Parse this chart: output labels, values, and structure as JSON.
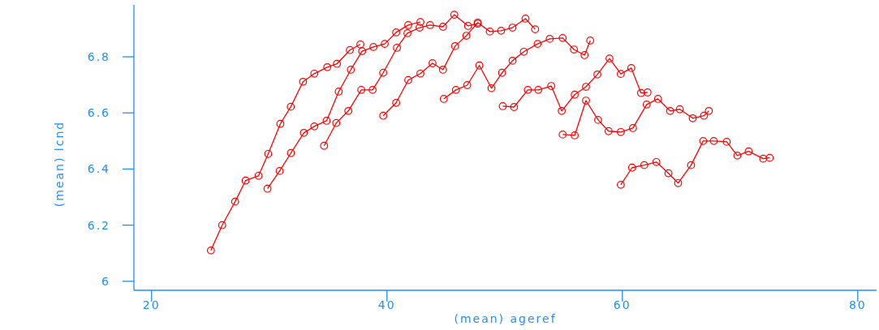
{
  "chart_data": {
    "type": "line",
    "xlabel": "(mean) ageref",
    "ylabel": "(mean) lcnd",
    "xlim": [
      18.5,
      81.6
    ],
    "ylim": [
      5.968,
      6.985
    ],
    "xticks": [
      20,
      40,
      60,
      80
    ],
    "yticks": [
      6,
      {
        "value": 6.2,
        "label": "6.2"
      },
      {
        "value": 6.4,
        "label": "6.4"
      },
      {
        "value": 6.6,
        "label": "6.6"
      },
      {
        "value": 6.8,
        "label": "6.8"
      }
    ],
    "grid": false,
    "marker": "circle",
    "line_style": "solid",
    "series": [
      {
        "color": "#ff0000",
        "x": [
          25.04,
          26.0,
          27.1,
          27.99,
          29.09,
          29.91,
          30.94,
          31.83,
          32.87,
          33.83,
          34.93,
          35.75,
          36.85,
          37.74
        ],
        "values": [
          6.11,
          6.2,
          6.284,
          6.359,
          6.376,
          6.454,
          6.561,
          6.622,
          6.711,
          6.74,
          6.763,
          6.775,
          6.824,
          6.844
        ]
      },
      {
        "color": "#ff0000",
        "x": [
          29.85,
          30.88,
          31.84,
          32.94,
          33.83,
          34.87,
          35.9,
          36.93,
          37.89,
          38.85,
          39.81,
          40.78,
          41.81,
          42.84
        ],
        "values": [
          6.33,
          6.393,
          6.457,
          6.529,
          6.552,
          6.572,
          6.676,
          6.754,
          6.82,
          6.835,
          6.846,
          6.887,
          6.913,
          6.924
        ]
      },
      {
        "color": "#ff0000",
        "x": [
          34.66,
          35.69,
          36.72,
          37.82,
          38.78,
          39.68,
          40.85,
          41.74,
          42.77,
          43.66,
          44.76,
          45.72,
          46.89,
          47.71
        ],
        "values": [
          6.483,
          6.564,
          6.607,
          6.682,
          6.682,
          6.743,
          6.832,
          6.884,
          6.904,
          6.913,
          6.907,
          6.95,
          6.91,
          6.918
        ]
      },
      {
        "color": "#ff0000",
        "x": [
          39.68,
          40.78,
          41.81,
          42.84,
          43.87,
          44.76,
          45.79,
          46.75,
          47.71,
          48.74,
          49.7,
          50.67,
          51.77,
          52.59
        ],
        "values": [
          6.59,
          6.636,
          6.717,
          6.74,
          6.777,
          6.754,
          6.838,
          6.875,
          6.922,
          6.89,
          6.893,
          6.904,
          6.936,
          6.898
        ]
      },
      {
        "color": "#ff0000",
        "x": [
          44.83,
          45.86,
          46.82,
          47.85,
          48.88,
          49.78,
          50.67,
          51.63,
          52.8,
          53.83,
          54.93,
          55.89,
          56.79,
          57.27
        ],
        "values": [
          6.65,
          6.682,
          6.699,
          6.769,
          6.688,
          6.743,
          6.786,
          6.818,
          6.846,
          6.864,
          6.867,
          6.826,
          6.806,
          6.858
        ]
      },
      {
        "color": "#ff0000",
        "x": [
          49.84,
          50.8,
          51.97,
          52.86,
          53.96,
          54.85,
          55.95,
          56.91,
          57.88,
          58.91,
          59.87,
          60.76,
          61.59,
          62.14
        ],
        "values": [
          6.624,
          6.621,
          6.682,
          6.682,
          6.696,
          6.607,
          6.665,
          6.693,
          6.737,
          6.794,
          6.739,
          6.76,
          6.671,
          6.673
        ]
      },
      {
        "color": "#ff0000",
        "x": [
          54.93,
          55.95,
          56.91,
          57.94,
          58.83,
          59.87,
          60.9,
          62.07,
          63.03,
          64.06,
          64.88,
          65.98,
          66.94,
          67.35
        ],
        "values": [
          6.523,
          6.52,
          6.644,
          6.575,
          6.535,
          6.532,
          6.546,
          6.63,
          6.65,
          6.607,
          6.613,
          6.581,
          6.59,
          6.607
        ]
      },
      {
        "color": "#ff0000",
        "x": [
          59.87,
          60.83,
          61.86,
          62.89,
          63.92,
          64.74,
          65.84,
          66.87,
          67.77,
          68.87,
          69.77,
          70.73,
          71.97,
          72.52
        ],
        "values": [
          6.344,
          6.405,
          6.414,
          6.425,
          6.385,
          6.35,
          6.414,
          6.5,
          6.5,
          6.497,
          6.448,
          6.463,
          6.437,
          6.44
        ]
      }
    ]
  }
}
